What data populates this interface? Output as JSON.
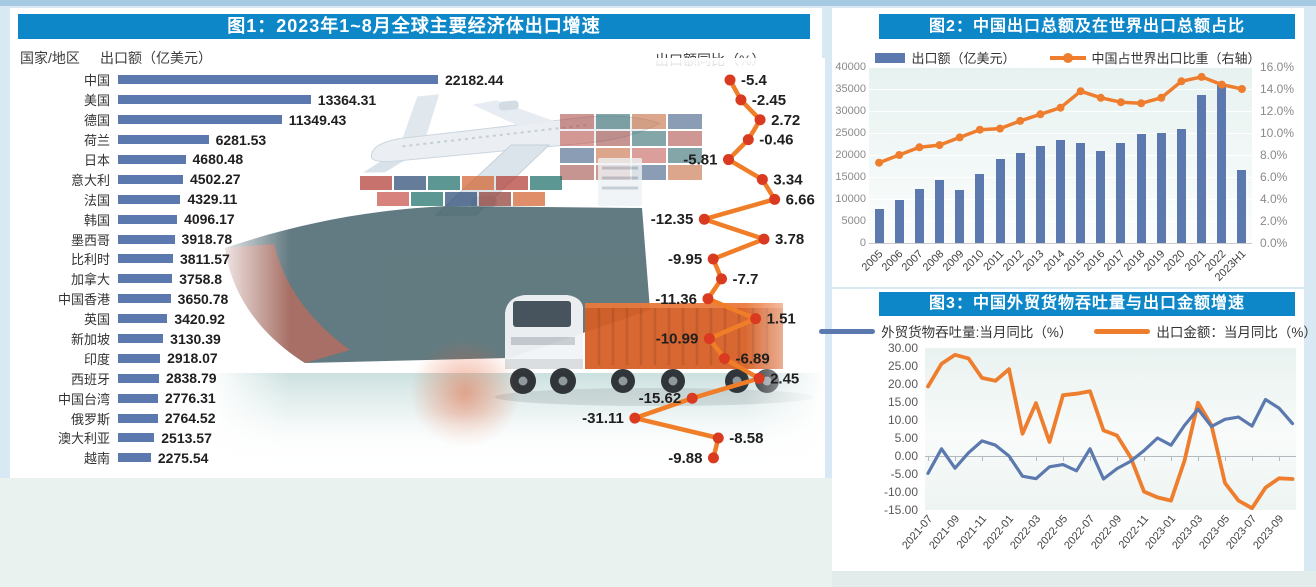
{
  "colors": {
    "title_bar": "#0d87c8",
    "bar_blue": "#5b79ae",
    "line_orange": "#ee7d2e",
    "spark_orange": "#f07d28",
    "dot_red": "#d93a20",
    "axis_grey": "#8a8a8a",
    "value_dark": "#1f1f1f"
  },
  "chart_data": [
    {
      "id": "chart1",
      "type": "bar",
      "title": "图1：2023年1~8月全球主要经济体出口增速",
      "col_country": "国家/地区",
      "col_export": "出口额（亿美元）",
      "col_yoy": "出口额同比（%）",
      "bar_unit": "亿美元",
      "line_unit": "%",
      "rows": [
        {
          "country": "中国",
          "export": 22182.44,
          "yoy": -5.4,
          "label_side": "right"
        },
        {
          "country": "美国",
          "export": 13364.31,
          "yoy": -2.45,
          "label_side": "right"
        },
        {
          "country": "德国",
          "export": 11349.43,
          "yoy": 2.72,
          "label_side": "right"
        },
        {
          "country": "荷兰",
          "export": 6281.53,
          "yoy": -0.46,
          "label_side": "right"
        },
        {
          "country": "日本",
          "export": 4680.48,
          "yoy": -5.81,
          "label_side": "left"
        },
        {
          "country": "意大利",
          "export": 4502.27,
          "yoy": 3.34,
          "label_side": "right"
        },
        {
          "country": "法国",
          "export": 4329.11,
          "yoy": 6.66,
          "label_side": "right"
        },
        {
          "country": "韩国",
          "export": 4096.17,
          "yoy": -12.35,
          "label_side": "left"
        },
        {
          "country": "墨西哥",
          "export": 3918.78,
          "yoy": 3.78,
          "label_side": "right"
        },
        {
          "country": "比利时",
          "export": 3811.57,
          "yoy": -9.95,
          "label_side": "left"
        },
        {
          "country": "加拿大",
          "export": 3758.8,
          "yoy": -7.7,
          "label_side": "right"
        },
        {
          "country": "中国香港",
          "export": 3650.78,
          "yoy": -11.36,
          "label_side": "left"
        },
        {
          "country": "英国",
          "export": 3420.92,
          "yoy": 1.51,
          "label_side": "right"
        },
        {
          "country": "新加坡",
          "export": 3130.39,
          "yoy": -10.99,
          "label_side": "left"
        },
        {
          "country": "印度",
          "export": 2918.07,
          "yoy": -6.89,
          "label_side": "right"
        },
        {
          "country": "西班牙",
          "export": 2838.79,
          "yoy": 2.45,
          "label_side": "right"
        },
        {
          "country": "中国台湾",
          "export": 2776.31,
          "yoy": -15.62,
          "label_side": "left"
        },
        {
          "country": "俄罗斯",
          "export": 2764.52,
          "yoy": -31.11,
          "label_side": "left"
        },
        {
          "country": "澳大利亚",
          "export": 2513.57,
          "yoy": -8.58,
          "label_side": "right"
        },
        {
          "country": "越南",
          "export": 2275.54,
          "yoy": -9.88,
          "label_side": "left"
        }
      ]
    },
    {
      "id": "chart2",
      "type": "bar",
      "title": "图2：中国出口总额及在世界出口总额占比",
      "legend_bar": "出口额（亿美元）",
      "legend_line": "中国占世界出口比重（右轴）",
      "categories": [
        "2005",
        "2006",
        "2007",
        "2008",
        "2009",
        "2010",
        "2011",
        "2012",
        "2013",
        "2014",
        "2015",
        "2016",
        "2017",
        "2018",
        "2019",
        "2020",
        "2021",
        "2022",
        "2023H1"
      ],
      "bar_values": [
        7620,
        9690,
        12205,
        14307,
        12016,
        15778,
        18984,
        20487,
        22090,
        23423,
        22735,
        20976,
        22633,
        24867,
        24995,
        25900,
        33640,
        35936,
        16634
      ],
      "line_values_pct": [
        7.3,
        8.0,
        8.7,
        8.9,
        9.6,
        10.3,
        10.4,
        11.1,
        11.7,
        12.3,
        13.8,
        13.2,
        12.8,
        12.7,
        13.2,
        14.7,
        15.1,
        14.4,
        14.0
      ],
      "left_axis": {
        "min": 0,
        "max": 40000,
        "step": 5000
      },
      "right_axis": {
        "min": 0,
        "max": 16,
        "step": 2,
        "suffix": "%"
      },
      "legend_position": "top"
    },
    {
      "id": "chart3",
      "type": "line",
      "title": "图3：中国外贸货物吞吐量与出口金额增速",
      "legend_blue": "外贸货物吞吐量:当月同比（%）",
      "legend_orange": "出口金额：当月同比（%）",
      "months": [
        "2021-07",
        "2021-08",
        "2021-09",
        "2021-10",
        "2021-11",
        "2021-12",
        "2022-01",
        "2022-02",
        "2022-03",
        "2022-04",
        "2022-05",
        "2022-06",
        "2022-07",
        "2022-08",
        "2022-09",
        "2022-10",
        "2022-11",
        "2022-12",
        "2023-01",
        "2023-02",
        "2023-03",
        "2023-04",
        "2023-05",
        "2023-06",
        "2023-07",
        "2023-08",
        "2023-09",
        "2023-10"
      ],
      "x_tick_labels": [
        "2021-07",
        "2021-09",
        "2021-11",
        "2022-01",
        "2022-03",
        "2022-05",
        "2022-07",
        "2022-09",
        "2022-11",
        "2023-01",
        "2023-03",
        "2023-05",
        "2023-07",
        "2023-09"
      ],
      "series": [
        {
          "name": "外贸货物吞吐量:当月同比（%）",
          "color": "#5b79ae",
          "values": [
            -4.8,
            2.0,
            -3.4,
            0.9,
            4.2,
            3.0,
            0.0,
            -5.6,
            -6.3,
            -3.0,
            -2.4,
            -4.1,
            2.0,
            -6.4,
            -3.5,
            -1.5,
            1.5,
            5.0,
            3.0,
            8.5,
            13.0,
            8.2,
            10.2,
            10.8,
            8.3,
            15.7,
            13.3,
            9.0
          ]
        },
        {
          "name": "出口金额：当月同比（%）",
          "color": "#ee7d2e",
          "values": [
            19.3,
            25.6,
            28.1,
            27.1,
            21.7,
            20.9,
            24.1,
            6.2,
            14.7,
            3.9,
            16.9,
            17.3,
            18.0,
            7.1,
            5.7,
            -0.3,
            -9.9,
            -11.5,
            -12.4,
            -1.3,
            14.8,
            8.5,
            -7.5,
            -12.4,
            -14.5,
            -8.8,
            -6.2,
            -6.4
          ]
        }
      ],
      "y_axis": {
        "min": -15,
        "max": 30,
        "step": 5
      },
      "legend_position": "top"
    }
  ]
}
